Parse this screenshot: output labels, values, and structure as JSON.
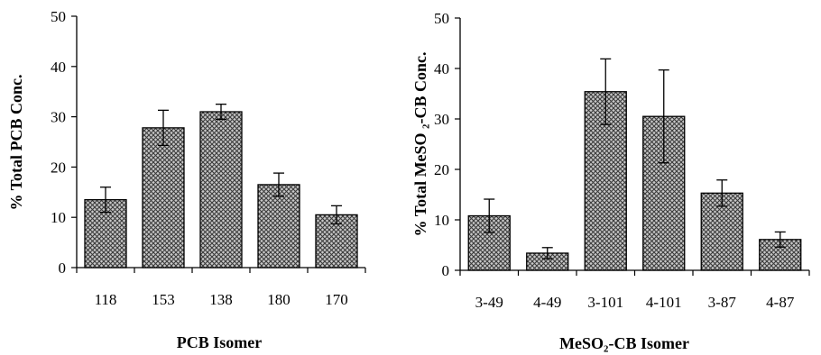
{
  "chart_data": [
    {
      "type": "bar",
      "title": "",
      "xlabel": "PCB Isomer",
      "ylabel": "% Total PCB Conc.",
      "ylim": [
        0,
        50
      ],
      "yticks": [
        0,
        10,
        20,
        30,
        40,
        50
      ],
      "grid": false,
      "categories": [
        "118",
        "153",
        "138",
        "180",
        "170"
      ],
      "values": [
        13.5,
        27.8,
        31.0,
        16.5,
        10.5
      ],
      "errors": [
        2.5,
        3.5,
        1.5,
        2.3,
        1.8
      ]
    },
    {
      "type": "bar",
      "title": "",
      "xlabel": "MeSO₂-CB Isomer",
      "ylabel": "% Total MeSO ₂-CB Conc.",
      "ylim": [
        0,
        50
      ],
      "yticks": [
        0,
        10,
        20,
        30,
        40,
        50
      ],
      "grid": false,
      "categories": [
        "3-49",
        "4-49",
        "3-101",
        "4-101",
        "3-87",
        "4-87"
      ],
      "values": [
        10.8,
        3.4,
        35.4,
        30.5,
        15.3,
        6.1
      ],
      "errors": [
        3.3,
        1.1,
        6.5,
        9.2,
        2.6,
        1.5
      ]
    }
  ]
}
